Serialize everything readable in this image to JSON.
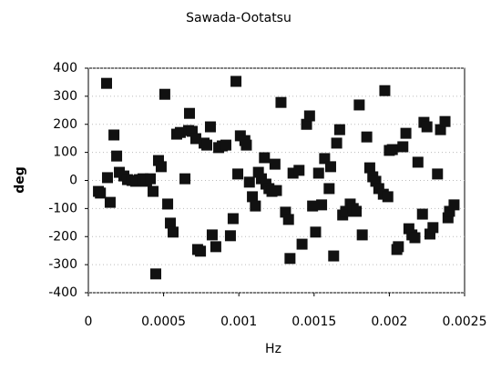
{
  "chart_data": {
    "type": "scatter",
    "title": "Sawada-Ootatsu",
    "xlabel": "Hz",
    "ylabel": "deg",
    "x": [
      6.7e-05,
      8e-05,
      0.000121,
      0.000127,
      0.000145,
      0.00017,
      0.000188,
      0.000206,
      0.000236,
      0.00026,
      0.00029,
      0.000315,
      0.000339,
      0.000363,
      0.000387,
      0.000412,
      0.00043,
      0.000448,
      0.000466,
      0.000484,
      0.000508,
      0.000527,
      0.000545,
      0.000563,
      0.000587,
      0.000611,
      0.000642,
      0.000666,
      0.000672,
      0.00069,
      0.000714,
      0.000726,
      0.000745,
      0.000769,
      0.000787,
      0.000811,
      0.000823,
      0.000847,
      0.000866,
      0.00089,
      0.000914,
      0.000944,
      0.000962,
      0.000981,
      0.000993,
      0.00101,
      0.00104,
      0.00105,
      0.00107,
      0.00109,
      0.00111,
      0.00113,
      0.00115,
      0.00117,
      0.00118,
      0.0012,
      0.00122,
      0.00124,
      0.00125,
      0.00128,
      0.00131,
      0.00133,
      0.00134,
      0.00136,
      0.0014,
      0.00142,
      0.00145,
      0.00147,
      0.00149,
      0.00151,
      0.00153,
      0.00155,
      0.00157,
      0.0016,
      0.00161,
      0.00163,
      0.00165,
      0.00167,
      0.00169,
      0.00171,
      0.00174,
      0.00176,
      0.00178,
      0.0018,
      0.00182,
      0.00185,
      0.00187,
      0.00189,
      0.00191,
      0.00193,
      0.00196,
      0.00197,
      0.00199,
      0.002,
      0.00202,
      0.00205,
      0.00206,
      0.00209,
      0.00211,
      0.00213,
      0.00215,
      0.00217,
      0.00219,
      0.00222,
      0.00223,
      0.00225,
      0.00227,
      0.00229,
      0.00232,
      0.00234,
      0.00237,
      0.00239,
      0.0024,
      0.00243
    ],
    "values": [
      -39,
      -45,
      346,
      10,
      -78,
      162,
      87,
      29,
      16,
      3,
      0,
      -3,
      3,
      6,
      -3,
      6,
      -39,
      -333,
      71,
      49,
      307,
      -84,
      -152,
      -184,
      165,
      171,
      6,
      178,
      239,
      175,
      149,
      -246,
      -252,
      133,
      126,
      191,
      -194,
      -236,
      117,
      123,
      126,
      -197,
      -136,
      353,
      23,
      159,
      142,
      126,
      -6,
      -58,
      -91,
      29,
      6,
      81,
      -13,
      -29,
      -39,
      58,
      -36,
      278,
      -113,
      -139,
      -278,
      26,
      36,
      -227,
      200,
      230,
      -91,
      -184,
      26,
      -87,
      78,
      -29,
      49,
      -269,
      133,
      181,
      -123,
      -110,
      -84,
      -100,
      -110,
      269,
      -194,
      155,
      45,
      13,
      -3,
      -29,
      -49,
      320,
      -58,
      107,
      110,
      -246,
      -236,
      120,
      168,
      -172,
      -194,
      -204,
      65,
      -120,
      207,
      191,
      -191,
      -168,
      23,
      181,
      210,
      -133,
      -110,
      -87
    ],
    "color": "#111111",
    "xlim": [
      0,
      0.0025
    ],
    "xticks": [
      0,
      0.0005,
      0.001,
      0.0015,
      0.002,
      0.0025
    ],
    "ylim": [
      -400,
      400
    ],
    "yticks": [
      -400,
      -300,
      -200,
      -100,
      0,
      100,
      200,
      300,
      400
    ],
    "grid": true
  }
}
